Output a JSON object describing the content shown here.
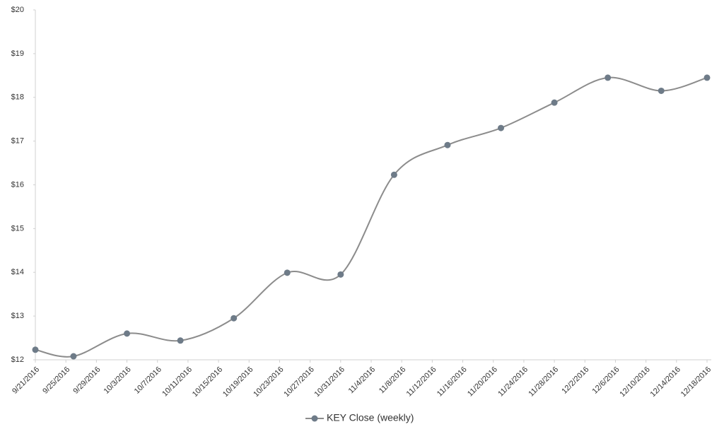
{
  "chart_data": {
    "type": "line",
    "x": [
      "9/21/2016",
      "9/26/2016",
      "10/3/2016",
      "10/10/2016",
      "10/17/2016",
      "10/24/2016",
      "10/31/2016",
      "11/7/2016",
      "11/14/2016",
      "11/21/2016",
      "11/28/2016",
      "12/5/2016",
      "12/12/2016",
      "12/18/2016"
    ],
    "series": [
      {
        "name": "KEY Close (weekly)",
        "color": "#6e7b88",
        "values": [
          12.23,
          12.08,
          12.6,
          12.44,
          12.95,
          13.99,
          13.95,
          16.23,
          16.91,
          17.3,
          17.88,
          18.45,
          18.15,
          18.45
        ]
      }
    ],
    "xlim": [
      "9/21/2016",
      "12/18/2016"
    ],
    "xticks": [
      "9/21/2016",
      "9/25/2016",
      "9/29/2016",
      "10/3/2016",
      "10/7/2016",
      "10/11/2016",
      "10/15/2016",
      "10/19/2016",
      "10/23/2016",
      "10/27/2016",
      "10/31/2016",
      "11/4/2016",
      "11/8/2016",
      "11/12/2016",
      "11/16/2016",
      "11/20/2016",
      "11/24/2016",
      "11/28/2016",
      "12/2/2016",
      "12/6/2016",
      "12/10/2016",
      "12/14/2016",
      "12/18/2016"
    ],
    "ylim": [
      12,
      20
    ],
    "yticks": [
      {
        "value": 12,
        "label": "$12"
      },
      {
        "value": 13,
        "label": "$13"
      },
      {
        "value": 14,
        "label": "$14"
      },
      {
        "value": 15,
        "label": "$15"
      },
      {
        "value": 16,
        "label": "$16"
      },
      {
        "value": 17,
        "label": "$17"
      },
      {
        "value": 18,
        "label": "$18"
      },
      {
        "value": 19,
        "label": "$19"
      },
      {
        "value": 20,
        "label": "$20"
      }
    ],
    "grid": false,
    "legend": "bottom"
  }
}
